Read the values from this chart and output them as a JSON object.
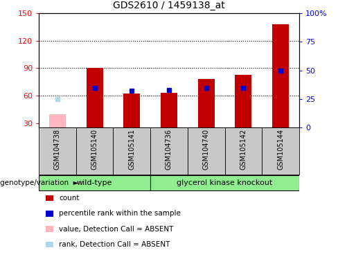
{
  "title": "GDS2610 / 1459138_at",
  "samples": [
    "GSM104738",
    "GSM105140",
    "GSM105141",
    "GSM104736",
    "GSM104740",
    "GSM105142",
    "GSM105144"
  ],
  "count_values": [
    null,
    90,
    62,
    63,
    78,
    83,
    138
  ],
  "count_absent": [
    40,
    null,
    null,
    null,
    null,
    null,
    null
  ],
  "rank_values": [
    null,
    35,
    32,
    33,
    35,
    35,
    50
  ],
  "rank_absent": [
    25,
    null,
    null,
    null,
    null,
    null,
    null
  ],
  "ylim_left": [
    25,
    150
  ],
  "ylim_right": [
    0,
    100
  ],
  "yticks_left": [
    30,
    60,
    90,
    120,
    150
  ],
  "yticks_right": [
    0,
    25,
    50,
    75,
    100
  ],
  "yticklabels_right": [
    "0",
    "25",
    "50",
    "75",
    "100%"
  ],
  "color_red": "#C00000",
  "color_pink": "#FFB6C1",
  "color_blue": "#0000CC",
  "color_lightblue": "#ADD8E6",
  "color_gray_bg": "#C8C8C8",
  "color_green": "#90EE90",
  "bar_width": 0.45,
  "legend_items": [
    {
      "color": "#C00000",
      "label": "count",
      "square": false
    },
    {
      "color": "#0000CC",
      "label": "percentile rank within the sample",
      "square": true
    },
    {
      "color": "#FFB6C1",
      "label": "value, Detection Call = ABSENT",
      "square": false
    },
    {
      "color": "#ADD8E6",
      "label": "rank, Detection Call = ABSENT",
      "square": true
    }
  ],
  "genotype_label": "genotype/variation",
  "wildtype_label": "wild-type",
  "knockout_label": "glycerol kinase knockout",
  "gridlines": [
    60,
    90,
    120
  ]
}
